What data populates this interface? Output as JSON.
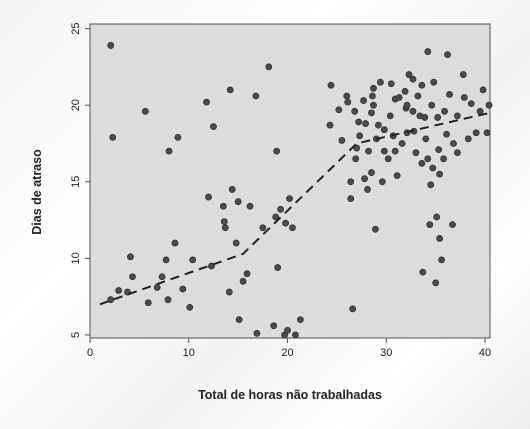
{
  "chart_data": {
    "type": "scatter",
    "title": "",
    "xlabel": "Total de horas não trabalhadas",
    "ylabel": "Dias de atraso",
    "xlim": [
      0,
      40.5
    ],
    "ylim": [
      4.8,
      25.3
    ],
    "xticks": [
      0,
      10,
      20,
      30,
      40
    ],
    "yticks": [
      5,
      10,
      15,
      20,
      25
    ],
    "grid": false,
    "legend": "none",
    "colors": {
      "points": "#4a4a4a",
      "plot_bg": "#dcdcdc",
      "line": "#222222"
    },
    "points": [
      [
        2.1,
        23.9
      ],
      [
        2.3,
        17.9
      ],
      [
        2.1,
        7.3
      ],
      [
        2.9,
        7.9
      ],
      [
        3.8,
        7.8
      ],
      [
        4.1,
        10.1
      ],
      [
        4.3,
        8.8
      ],
      [
        5.6,
        19.6
      ],
      [
        5.9,
        7.1
      ],
      [
        6.8,
        8.1
      ],
      [
        7.3,
        8.8
      ],
      [
        7.7,
        9.9
      ],
      [
        7.9,
        7.3
      ],
      [
        8.0,
        17.0
      ],
      [
        8.6,
        11.0
      ],
      [
        8.9,
        17.9
      ],
      [
        9.4,
        8.0
      ],
      [
        10.1,
        6.8
      ],
      [
        10.4,
        9.9
      ],
      [
        11.8,
        20.2
      ],
      [
        12.0,
        14.0
      ],
      [
        12.3,
        9.5
      ],
      [
        12.5,
        18.6
      ],
      [
        13.5,
        13.4
      ],
      [
        13.6,
        12.4
      ],
      [
        13.7,
        12.0
      ],
      [
        14.1,
        7.8
      ],
      [
        14.2,
        21.0
      ],
      [
        14.4,
        14.5
      ],
      [
        14.8,
        11.0
      ],
      [
        15.0,
        13.7
      ],
      [
        15.1,
        6.0
      ],
      [
        15.5,
        8.5
      ],
      [
        15.9,
        9.0
      ],
      [
        16.2,
        13.4
      ],
      [
        16.8,
        20.6
      ],
      [
        16.9,
        5.1
      ],
      [
        17.5,
        12.0
      ],
      [
        18.1,
        22.5
      ],
      [
        18.6,
        5.6
      ],
      [
        18.8,
        12.7
      ],
      [
        18.9,
        17.0
      ],
      [
        19.0,
        9.4
      ],
      [
        19.3,
        13.2
      ],
      [
        19.7,
        5.0
      ],
      [
        19.8,
        12.3
      ],
      [
        20.0,
        5.3
      ],
      [
        20.2,
        13.9
      ],
      [
        20.5,
        12.0
      ],
      [
        20.8,
        5.0
      ],
      [
        21.3,
        6.0
      ],
      [
        24.3,
        18.7
      ],
      [
        24.4,
        21.3
      ],
      [
        25.2,
        19.7
      ],
      [
        25.5,
        17.7
      ],
      [
        26.0,
        20.6
      ],
      [
        26.1,
        20.2
      ],
      [
        26.4,
        15.0
      ],
      [
        26.4,
        13.9
      ],
      [
        26.6,
        6.7
      ],
      [
        26.8,
        19.6
      ],
      [
        26.9,
        16.5
      ],
      [
        27.0,
        17.2
      ],
      [
        27.2,
        18.9
      ],
      [
        27.3,
        18.0
      ],
      [
        27.7,
        20.3
      ],
      [
        27.8,
        15.2
      ],
      [
        27.9,
        18.8
      ],
      [
        28.1,
        14.5
      ],
      [
        28.2,
        17.0
      ],
      [
        28.5,
        15.6
      ],
      [
        28.5,
        19.5
      ],
      [
        28.6,
        20.6
      ],
      [
        28.7,
        20.0
      ],
      [
        28.7,
        21.1
      ],
      [
        28.9,
        11.9
      ],
      [
        29.0,
        17.8
      ],
      [
        29.2,
        18.7
      ],
      [
        29.4,
        21.5
      ],
      [
        29.6,
        15.0
      ],
      [
        29.8,
        18.4
      ],
      [
        29.8,
        17.0
      ],
      [
        30.2,
        16.5
      ],
      [
        30.4,
        19.3
      ],
      [
        30.5,
        21.4
      ],
      [
        30.7,
        18.0
      ],
      [
        30.9,
        20.4
      ],
      [
        30.9,
        17.0
      ],
      [
        31.1,
        15.4
      ],
      [
        31.3,
        20.5
      ],
      [
        31.6,
        17.5
      ],
      [
        31.9,
        20.9
      ],
      [
        32.0,
        19.8
      ],
      [
        32.1,
        18.2
      ],
      [
        32.1,
        20.0
      ],
      [
        32.3,
        22.0
      ],
      [
        32.7,
        21.7
      ],
      [
        32.7,
        19.6
      ],
      [
        32.8,
        18.3
      ],
      [
        33.0,
        16.9
      ],
      [
        33.2,
        20.6
      ],
      [
        33.4,
        19.3
      ],
      [
        33.6,
        16.2
      ],
      [
        33.6,
        21.3
      ],
      [
        33.7,
        9.1
      ],
      [
        33.9,
        19.2
      ],
      [
        34.0,
        17.8
      ],
      [
        34.2,
        16.5
      ],
      [
        34.2,
        23.5
      ],
      [
        34.4,
        12.2
      ],
      [
        34.5,
        14.8
      ],
      [
        34.6,
        20.0
      ],
      [
        34.7,
        15.9
      ],
      [
        34.8,
        21.5
      ],
      [
        35.0,
        8.4
      ],
      [
        35.1,
        12.7
      ],
      [
        35.2,
        19.2
      ],
      [
        35.3,
        17.1
      ],
      [
        35.4,
        11.3
      ],
      [
        35.4,
        15.5
      ],
      [
        35.6,
        9.9
      ],
      [
        35.8,
        16.5
      ],
      [
        35.9,
        19.6
      ],
      [
        36.1,
        18.1
      ],
      [
        36.2,
        23.3
      ],
      [
        36.4,
        20.7
      ],
      [
        36.7,
        12.2
      ],
      [
        36.8,
        17.5
      ],
      [
        37.2,
        19.3
      ],
      [
        37.2,
        16.9
      ],
      [
        37.8,
        22.0
      ],
      [
        37.9,
        20.5
      ],
      [
        38.3,
        17.8
      ],
      [
        38.6,
        20.1
      ],
      [
        39.1,
        18.2
      ],
      [
        39.5,
        19.6
      ],
      [
        39.8,
        21.0
      ],
      [
        40.2,
        18.2
      ],
      [
        40.4,
        20.0
      ]
    ],
    "trend_line": [
      [
        1,
        7.0
      ],
      [
        15.5,
        10.3
      ],
      [
        27,
        17.5
      ],
      [
        40.5,
        19.5
      ]
    ]
  }
}
